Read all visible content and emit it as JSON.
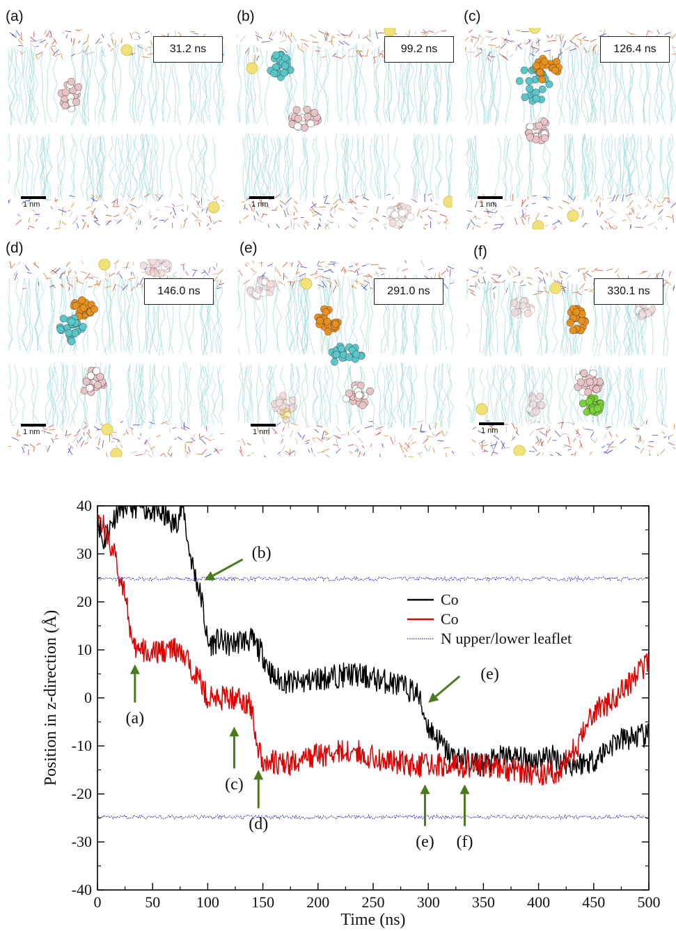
{
  "panels": [
    {
      "letter": "(a)",
      "time": "31.2 ns",
      "scale": "1 nm"
    },
    {
      "letter": "(b)",
      "time": "99.2 ns",
      "scale": "1 nm"
    },
    {
      "letter": "(c)",
      "time": "126.4 ns",
      "scale": "1 nm"
    },
    {
      "letter": "(d)",
      "time": "146.0 ns",
      "scale": "1 nm"
    },
    {
      "letter": "(e)",
      "time": "291.0 ns",
      "scale": "1 nm"
    },
    {
      "letter": "(f)",
      "time": "330.1 ns",
      "scale": "1 nm"
    }
  ],
  "colors": {
    "lipid_tail": "#9fd8d8",
    "molecule_cyan": "#5bc6c9",
    "molecule_orange": "#e8901e",
    "molecule_pink": "#e9c3c6",
    "molecule_green": "#7bd23c",
    "ion": "#f1e27a"
  },
  "chart_data": {
    "type": "line",
    "xlabel": "Time (ns)",
    "ylabel": "Position in z-direction (Å)",
    "xlim": [
      0,
      500
    ],
    "ylim": [
      -40,
      40
    ],
    "xticks": [
      "0",
      "50",
      "100",
      "150",
      "200",
      "250",
      "300",
      "350",
      "400",
      "450",
      "500"
    ],
    "yticks": [
      "40",
      "30",
      "20",
      "10",
      "0",
      "-10",
      "-20",
      "-30",
      "-40"
    ],
    "legend_position": "right-center",
    "series": [
      {
        "name": "Co",
        "color": "#000000",
        "style": "solid",
        "x": [
          0,
          5,
          10,
          20,
          30,
          40,
          50,
          60,
          70,
          78,
          82,
          88,
          95,
          100,
          110,
          120,
          130,
          140,
          150,
          160,
          180,
          200,
          230,
          250,
          270,
          290,
          300,
          320,
          350,
          370,
          390,
          410,
          430,
          450,
          470,
          490,
          500
        ],
        "y": [
          38,
          32,
          35,
          40,
          40,
          40,
          39,
          38,
          36,
          40,
          32,
          26,
          20,
          11,
          12,
          11,
          12,
          12,
          9,
          4,
          3,
          4,
          5,
          4,
          3,
          1,
          -6,
          -12,
          -14,
          -12,
          -13,
          -12,
          -14,
          -13,
          -9,
          -8,
          -8
        ]
      },
      {
        "name": "Co",
        "color": "#dd0000",
        "style": "solid",
        "x": [
          0,
          5,
          10,
          15,
          20,
          25,
          28,
          32,
          40,
          50,
          60,
          70,
          80,
          90,
          100,
          110,
          120,
          130,
          140,
          145,
          150,
          170,
          200,
          230,
          260,
          290,
          320,
          350,
          380,
          400,
          420,
          435,
          450,
          470,
          490,
          500
        ],
        "y": [
          38,
          36,
          33,
          30,
          25,
          23,
          17,
          10,
          10,
          9,
          10,
          10,
          8,
          5,
          0,
          0,
          0,
          0,
          -2,
          -10,
          -13,
          -14,
          -12,
          -11,
          -13,
          -14,
          -14,
          -14,
          -15,
          -16,
          -15,
          -10,
          -3,
          0,
          5,
          8
        ]
      },
      {
        "name": "N upper/lower leaflet",
        "color": "#2222cc",
        "style": "dotted",
        "upper": 24.8,
        "lower": -24.8
      }
    ],
    "annotations": [
      {
        "label": "(a)",
        "x": 34,
        "y": 7
      },
      {
        "label": "(b)",
        "x": 97,
        "y": 24.5
      },
      {
        "label": "(c)",
        "x": 124,
        "y": -6
      },
      {
        "label": "(d)",
        "x": 146,
        "y": -15
      },
      {
        "label": "(e)",
        "x": 297,
        "y": -18
      },
      {
        "label": "(e)",
        "x": 300,
        "y": -1
      },
      {
        "label": "(f)",
        "x": 333,
        "y": -18
      }
    ]
  }
}
